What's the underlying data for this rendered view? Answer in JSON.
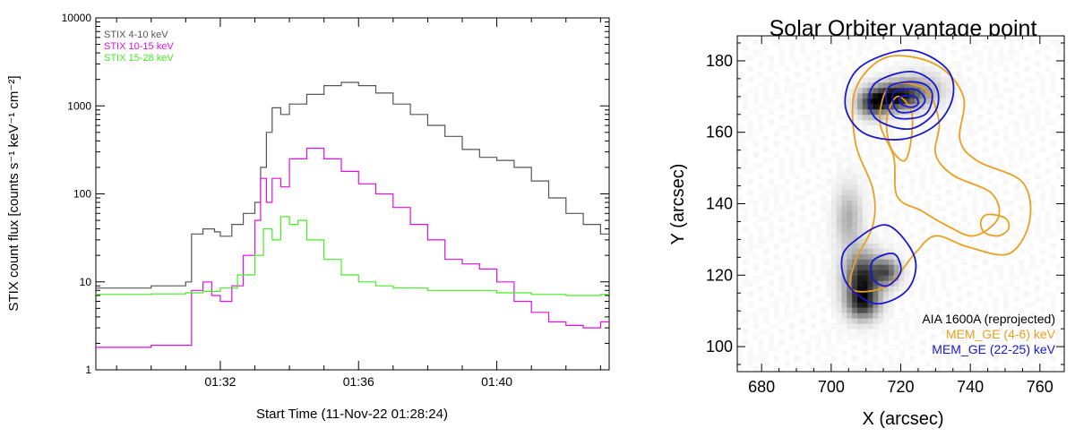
{
  "chart_data": [
    {
      "type": "line",
      "title": "",
      "xlabel": "Start Time (11-Nov-22 01:28:24)",
      "ylabel": "STIX count flux [counts s⁻¹ keV⁻¹ cm⁻²]",
      "x_unit": "minutes",
      "xlim": [
        "01:28:24",
        "01:43:15"
      ],
      "ylim": [
        1,
        10000
      ],
      "y_scale": "log",
      "x_ticks": [
        "01:32",
        "01:36",
        "01:40"
      ],
      "y_ticks": [
        "1",
        "10",
        "100",
        "1000",
        "10000"
      ],
      "legend_placement": "top-left",
      "series": [
        {
          "name": "STIX 4-10 keV",
          "color": "#555555",
          "step": true,
          "x": [
            "01:28:24",
            "01:29:00",
            "01:30:00",
            "01:30:30",
            "01:31:00",
            "01:31:10",
            "01:31:30",
            "01:31:50",
            "01:32:00",
            "01:32:20",
            "01:32:40",
            "01:33:00",
            "01:33:10",
            "01:33:20",
            "01:33:30",
            "01:33:45",
            "01:34:00",
            "01:34:30",
            "01:35:00",
            "01:35:30",
            "01:36:00",
            "01:36:30",
            "01:37:00",
            "01:37:30",
            "01:38:00",
            "01:38:30",
            "01:39:00",
            "01:39:30",
            "01:40:00",
            "01:40:30",
            "01:41:00",
            "01:41:30",
            "01:42:00",
            "01:42:30",
            "01:43:00",
            "01:43:15"
          ],
          "y": [
            8.5,
            8.5,
            9,
            9,
            10,
            35,
            40,
            37,
            33,
            45,
            60,
            80,
            200,
            500,
            950,
            800,
            1050,
            1350,
            1700,
            1850,
            1700,
            1400,
            1050,
            800,
            600,
            450,
            320,
            260,
            240,
            200,
            140,
            90,
            60,
            45,
            35,
            33
          ]
        },
        {
          "name": "STIX 10-15 keV",
          "color": "#e010e0",
          "step": true,
          "x": [
            "01:28:24",
            "01:29:00",
            "01:30:00",
            "01:31:00",
            "01:31:10",
            "01:31:30",
            "01:31:45",
            "01:32:00",
            "01:32:20",
            "01:32:40",
            "01:33:00",
            "01:33:10",
            "01:33:20",
            "01:33:30",
            "01:33:45",
            "01:34:00",
            "01:34:30",
            "01:35:00",
            "01:35:30",
            "01:36:00",
            "01:36:30",
            "01:37:00",
            "01:37:30",
            "01:38:00",
            "01:38:30",
            "01:39:00",
            "01:39:30",
            "01:40:00",
            "01:40:30",
            "01:41:00",
            "01:41:30",
            "01:42:00",
            "01:42:30",
            "01:43:00",
            "01:43:15"
          ],
          "y": [
            1.8,
            1.8,
            1.9,
            1.9,
            8,
            10,
            7,
            6,
            9,
            20,
            50,
            150,
            80,
            150,
            120,
            250,
            330,
            250,
            180,
            130,
            100,
            70,
            45,
            30,
            18,
            16,
            14,
            10,
            6,
            4.5,
            3.5,
            3.2,
            3,
            3.5,
            3.5
          ]
        },
        {
          "name": "STIX 15-28 keV",
          "color": "#44ee22",
          "step": true,
          "x": [
            "01:28:24",
            "01:29:00",
            "01:30:00",
            "01:31:00",
            "01:31:30",
            "01:32:00",
            "01:32:30",
            "01:33:00",
            "01:33:15",
            "01:33:30",
            "01:33:45",
            "01:34:00",
            "01:34:15",
            "01:34:30",
            "01:35:00",
            "01:35:30",
            "01:36:00",
            "01:36:30",
            "01:37:00",
            "01:38:00",
            "01:39:00",
            "01:40:00",
            "01:41:00",
            "01:42:00",
            "01:43:00",
            "01:43:15"
          ],
          "y": [
            7.2,
            7.2,
            7.3,
            7.5,
            7.8,
            8.5,
            12,
            20,
            40,
            30,
            55,
            45,
            50,
            30,
            18,
            12,
            10,
            9,
            8.5,
            8,
            8,
            7.5,
            7.2,
            7,
            7.2,
            7.2
          ]
        }
      ]
    },
    {
      "type": "heatmap",
      "title": "Solar Orbiter vantage point",
      "xlabel": "X (arcsec)",
      "ylabel": "Y (arcsec)",
      "xlim": [
        673,
        767
      ],
      "ylim": [
        93,
        187
      ],
      "x_ticks": [
        "680",
        "700",
        "720",
        "740",
        "760"
      ],
      "y_ticks": [
        "100",
        "120",
        "140",
        "160",
        "180"
      ],
      "legend_placement": "bottom-right",
      "background": {
        "name": "AIA 1600A (reprojected)",
        "colormap": "grayscale-inverted",
        "sources": [
          {
            "x": 718,
            "y": 170,
            "sx": 4.5,
            "sy": 2.5,
            "amp": 0.9
          },
          {
            "x": 712,
            "y": 168,
            "sx": 3,
            "sy": 2.5,
            "amp": 0.7
          },
          {
            "x": 725,
            "y": 172,
            "sx": 5,
            "sy": 3,
            "amp": 0.35
          },
          {
            "x": 709,
            "y": 119,
            "sx": 3.5,
            "sy": 5,
            "amp": 0.85
          },
          {
            "x": 716,
            "y": 121,
            "sx": 2.5,
            "sy": 2.5,
            "amp": 0.6
          },
          {
            "x": 705,
            "y": 136,
            "sx": 2.5,
            "sy": 6,
            "amp": 0.3
          },
          {
            "x": 709,
            "y": 112,
            "sx": 3,
            "sy": 3,
            "amp": 0.6
          }
        ]
      },
      "contours": [
        {
          "name": "MEM_GE (4-6) keV",
          "color": "#e8a020",
          "levels": [
            [
              [
                716,
                181
              ],
              [
                730,
                179
              ],
              [
                738,
                170
              ],
              [
                737,
                158
              ],
              [
                742,
                152
              ],
              [
                755,
                146
              ],
              [
                757,
                135
              ],
              [
                751,
                126
              ],
              [
                739,
                128
              ],
              [
                730,
                131
              ],
              [
                724,
                126
              ],
              [
                716,
                117
              ],
              [
                706,
                116
              ],
              [
                707,
                124
              ],
              [
                712,
                134
              ],
              [
                712,
                144
              ],
              [
                707,
                157
              ],
              [
                707,
                172
              ]
            ],
            [
              [
                717,
                173
              ],
              [
                727,
                172
              ],
              [
                731,
                163
              ],
              [
                730,
                154
              ],
              [
                735,
                148
              ],
              [
                746,
                143
              ],
              [
                748,
                136
              ],
              [
                741,
                131
              ],
              [
                733,
                134
              ],
              [
                726,
                138
              ],
              [
                719,
                142
              ],
              [
                718,
                153
              ],
              [
                714,
                163
              ]
            ],
            [
              [
                719,
                170
              ],
              [
                723,
                166
              ],
              [
                723,
                158
              ],
              [
                721,
                152
              ],
              [
                717,
                156
              ],
              [
                716,
                164
              ]
            ],
            [
              [
                745,
                137
              ],
              [
                750,
                136
              ],
              [
                751,
                133
              ],
              [
                748,
                131
              ],
              [
                744,
                132
              ],
              [
                743,
                135
              ]
            ]
          ]
        },
        {
          "name": "MEM_GE (22-25) keV",
          "color": "#1818d0",
          "levels": [
            [
              [
                708,
                178
              ],
              [
                722,
                183
              ],
              [
                733,
                178
              ],
              [
                735,
                170
              ],
              [
                730,
                162
              ],
              [
                720,
                158
              ],
              [
                709,
                160
              ],
              [
                704,
                168
              ]
            ],
            [
              [
                713,
                174
              ],
              [
                723,
                177
              ],
              [
                730,
                173
              ],
              [
                730,
                166
              ],
              [
                723,
                161
              ],
              [
                714,
                163
              ],
              [
                711,
                168
              ]
            ],
            [
              [
                717,
                173
              ],
              [
                725,
                174
              ],
              [
                729,
                171
              ],
              [
                727,
                165
              ],
              [
                719,
                164
              ],
              [
                716,
                168
              ]
            ],
            [
              [
                718,
                171
              ],
              [
                724,
                172
              ],
              [
                727,
                169
              ],
              [
                724,
                166
              ],
              [
                719,
                166
              ]
            ],
            [
              [
                720,
                170
              ],
              [
                724,
                170
              ],
              [
                725,
                168
              ],
              [
                723,
                167
              ],
              [
                720,
                168
              ]
            ],
            [
              [
                706,
                129
              ],
              [
                716,
                134
              ],
              [
                724,
                125
              ],
              [
                722,
                116
              ],
              [
                713,
                112
              ],
              [
                705,
                117
              ],
              [
                703,
                124
              ]
            ],
            [
              [
                712,
                124
              ],
              [
                718,
                126
              ],
              [
                720,
                121
              ],
              [
                716,
                117
              ],
              [
                712,
                119
              ]
            ]
          ]
        }
      ]
    }
  ]
}
